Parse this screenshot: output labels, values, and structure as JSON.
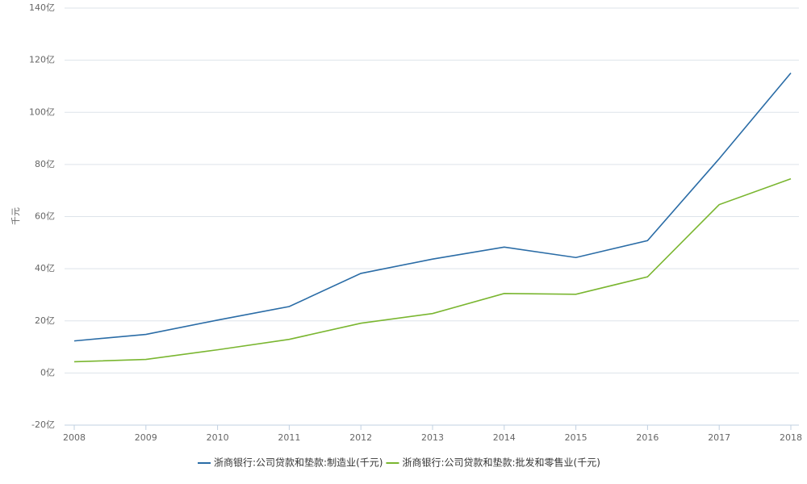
{
  "chart_data": {
    "type": "line",
    "y_label": "千元",
    "categories": [
      "2008",
      "2009",
      "2010",
      "2011",
      "2012",
      "2013",
      "2014",
      "2015",
      "2016",
      "2017",
      "2018"
    ],
    "series": [
      {
        "name": "浙商银行:公司贷款和垫款:制造业(千元)",
        "color": "#2a6ca6",
        "values": [
          12.3,
          14.8,
          20.3,
          25.5,
          38.2,
          43.7,
          48.3,
          44.3,
          50.8,
          82.2,
          115.1
        ]
      },
      {
        "name": "浙商银行:公司贷款和垫款:批发和零售业(千元)",
        "color": "#7ab630",
        "values": [
          4.3,
          5.2,
          8.9,
          12.9,
          19.1,
          22.8,
          30.5,
          30.2,
          36.9,
          64.6,
          74.5
        ]
      }
    ],
    "ylim": [
      -20,
      140
    ],
    "yticks": [
      {
        "value": -20,
        "label": "-20亿"
      },
      {
        "value": 0,
        "label": "0亿"
      },
      {
        "value": 20,
        "label": "20亿"
      },
      {
        "value": 40,
        "label": "40亿"
      },
      {
        "value": 60,
        "label": "60亿"
      },
      {
        "value": 80,
        "label": "80亿"
      },
      {
        "value": 100,
        "label": "100亿"
      },
      {
        "value": 120,
        "label": "120亿"
      },
      {
        "value": 140,
        "label": "140亿"
      }
    ],
    "grid": true,
    "legend": "bottom"
  }
}
